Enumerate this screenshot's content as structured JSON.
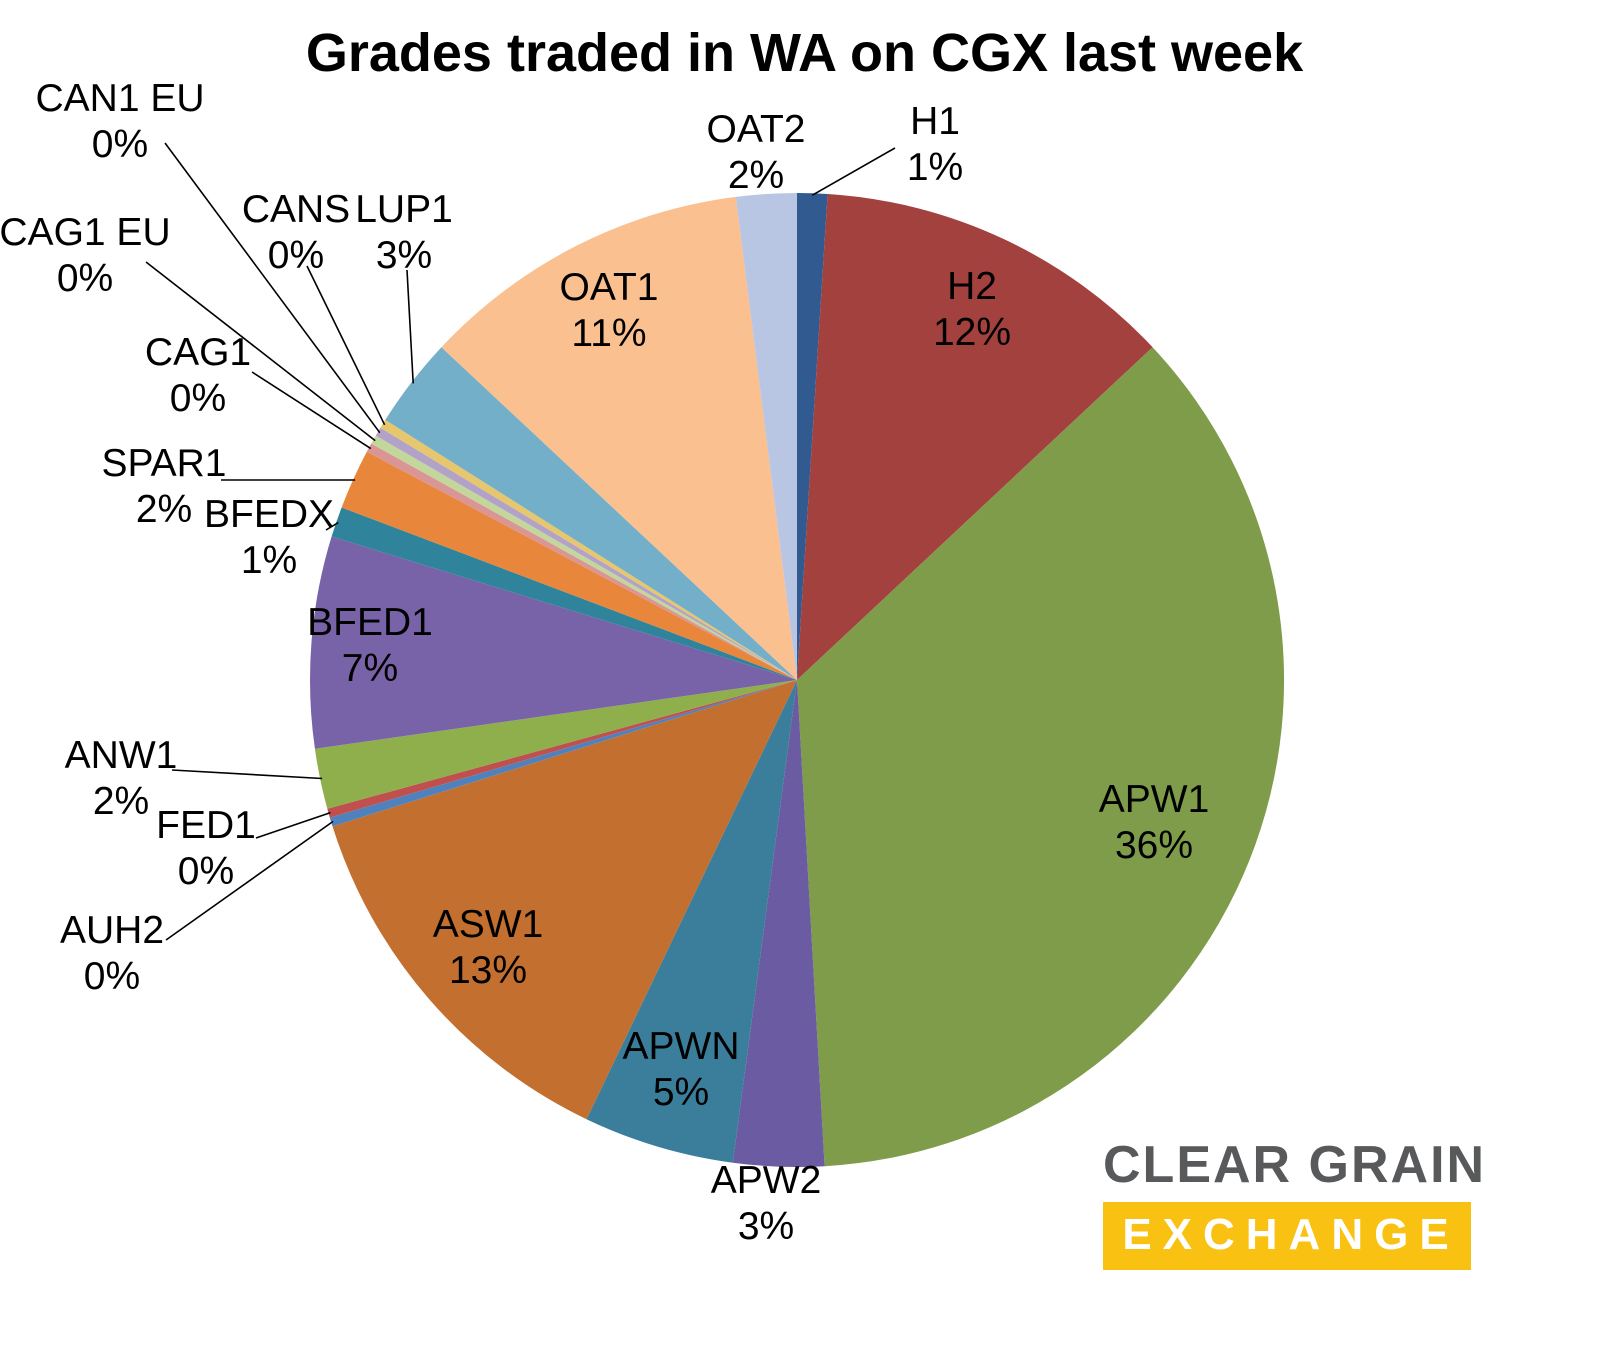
{
  "title": "Grades traded in WA on CGX last week",
  "chart_data": {
    "type": "pie",
    "title": "Grades traded in WA on CGX last week",
    "direction": "clockwise",
    "start_angle_deg": 0,
    "legend_position": "none",
    "slices": [
      {
        "name": "H1",
        "pct": 1,
        "pct_label": "1%",
        "color": "#315A91"
      },
      {
        "name": "H2",
        "pct": 12,
        "pct_label": "12%",
        "color": "#A2413E"
      },
      {
        "name": "APW1",
        "pct": 36,
        "pct_label": "36%",
        "color": "#7E9C49"
      },
      {
        "name": "APW2",
        "pct": 3,
        "pct_label": "3%",
        "color": "#6A5BA3"
      },
      {
        "name": "APWN",
        "pct": 5,
        "pct_label": "5%",
        "color": "#3B7E9B"
      },
      {
        "name": "ASW1",
        "pct": 13,
        "pct_label": "13%",
        "color": "#C26F30"
      },
      {
        "name": "AUH2",
        "pct": 0,
        "pct_label": "0%",
        "color": "#4F81BD",
        "display": 0.3
      },
      {
        "name": "FED1",
        "pct": 0,
        "pct_label": "0%",
        "color": "#C0504D",
        "display": 0.3
      },
      {
        "name": "ANW1",
        "pct": 2,
        "pct_label": "2%",
        "color": "#8FAF4C"
      },
      {
        "name": "BFED1",
        "pct": 7,
        "pct_label": "7%",
        "color": "#7863A8"
      },
      {
        "name": "BFEDX",
        "pct": 1,
        "pct_label": "1%",
        "color": "#2F849B"
      },
      {
        "name": "SPAR1",
        "pct": 2,
        "pct_label": "2%",
        "color": "#E8873C"
      },
      {
        "name": "CAG1",
        "pct": 0,
        "pct_label": "0%",
        "color": "#D99694",
        "display": 0.3
      },
      {
        "name": "CAG1 EU",
        "pct": 0,
        "pct_label": "0%",
        "color": "#C3D69B",
        "display": 0.3
      },
      {
        "name": "CAN1 EU",
        "pct": 0,
        "pct_label": "0%",
        "color": "#B3A2C7",
        "display": 0.3
      },
      {
        "name": "CANS",
        "pct": 0,
        "pct_label": "0%",
        "color": "#E6C76D",
        "display": 0.3
      },
      {
        "name": "LUP1",
        "pct": 3,
        "pct_label": "3%",
        "color": "#74AFC9"
      },
      {
        "name": "OAT1",
        "pct": 11,
        "pct_label": "11%",
        "color": "#FAC090"
      },
      {
        "name": "OAT2",
        "pct": 2,
        "pct_label": "2%",
        "color": "#B9C6E3"
      }
    ]
  },
  "logo": {
    "line1": "CLEAR GRAIN",
    "line2": "EXCHANGE",
    "text_color": "#58595B",
    "accent_color": "#F9C213",
    "exchange_text_color": "#FFFFFF"
  }
}
